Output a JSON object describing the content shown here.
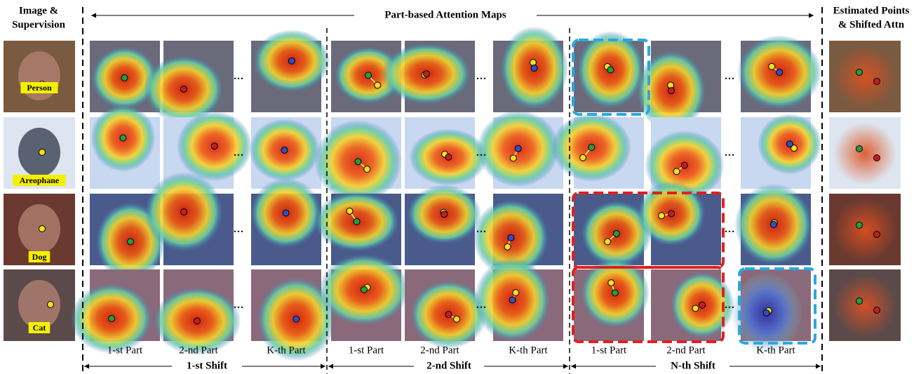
{
  "header": {
    "left_title": [
      "Image &",
      "Supervision"
    ],
    "center_title": "Part-based Attention Maps",
    "right_title": [
      "Estimated Points",
      "& Shifted Attn"
    ]
  },
  "rows": [
    {
      "label": "Person"
    },
    {
      "label": "Areophane"
    },
    {
      "label": "Dog"
    },
    {
      "label": "Cat"
    }
  ],
  "groups": [
    {
      "shift": "1-st Shift",
      "parts": [
        "1-st Part",
        "2-nd Part",
        "K-th Part"
      ]
    },
    {
      "shift": "2-nd Shift",
      "parts": [
        "1-st Part",
        "2-nd Part",
        "K-th Part"
      ]
    },
    {
      "shift": "N-th Shift",
      "parts": [
        "1-st Part",
        "2-nd Part",
        "K-th Part"
      ]
    }
  ]
}
